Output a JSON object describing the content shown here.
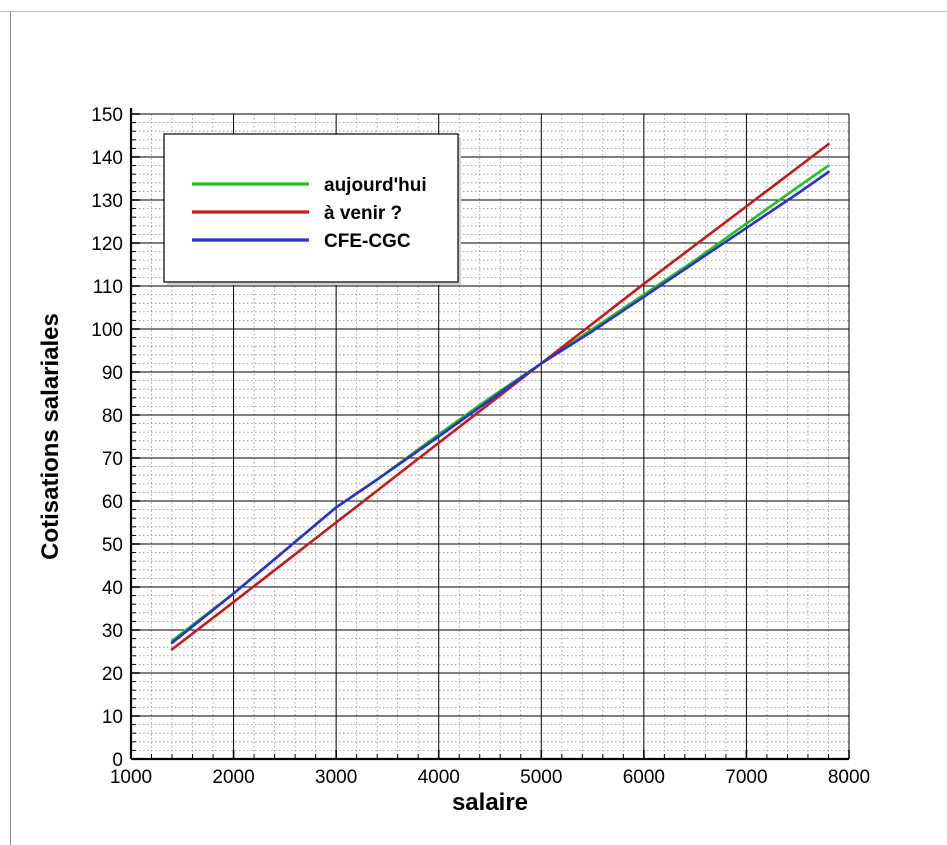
{
  "chart_data": {
    "type": "line",
    "title": "",
    "xlabel": "salaire",
    "ylabel": "Cotisations salariales",
    "xlim": [
      1000,
      8000
    ],
    "ylim": [
      0,
      150
    ],
    "x_ticks": [
      "1000",
      "2000",
      "3000",
      "4000",
      "5000",
      "6000",
      "7000",
      "8000"
    ],
    "y_ticks": [
      "0",
      "10",
      "20",
      "30",
      "40",
      "50",
      "60",
      "70",
      "80",
      "90",
      "100",
      "110",
      "120",
      "130",
      "140",
      "150"
    ],
    "grid": true,
    "minor_grid": true,
    "legend_position": "top-left",
    "series": [
      {
        "name": "aujourd'hui",
        "color": "#1ec31e",
        "x": [
          1400,
          2000,
          2500,
          3000,
          3400,
          4000,
          4500,
          5000,
          5500,
          6000,
          6500,
          7000,
          7500,
          7800
        ],
        "y": [
          27.5,
          38.5,
          48.5,
          58.5,
          65,
          75.5,
          84,
          92,
          100,
          108,
          116,
          124.5,
          133,
          138
        ]
      },
      {
        "name": "à venir ?",
        "color": "#c41a1a",
        "x": [
          1400,
          2000,
          3000,
          4000,
          5000,
          6000,
          7000,
          7800
        ],
        "y": [
          25.5,
          36.5,
          55,
          73.5,
          92,
          110.5,
          128.5,
          143
        ]
      },
      {
        "name": "CFE-CGC",
        "color": "#2d2fd6",
        "x": [
          1400,
          2000,
          2500,
          3000,
          3400,
          4000,
          4500,
          5000,
          5500,
          6000,
          6500,
          7000,
          7500,
          7800
        ],
        "y": [
          27,
          38.5,
          48.5,
          58.5,
          65,
          75,
          83.5,
          92,
          99.5,
          107.5,
          115.5,
          123.5,
          131.5,
          136.5
        ]
      }
    ]
  }
}
